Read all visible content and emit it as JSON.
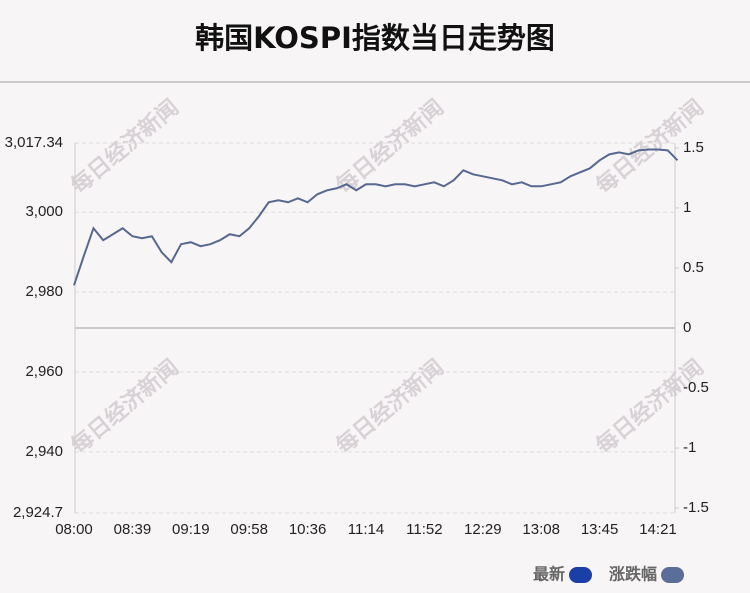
{
  "chart_data": {
    "type": "line",
    "title": "韩国KOSPI指数当日走势图",
    "watermark": "每日经济新闻",
    "categories": [
      "08:00",
      null,
      null,
      null,
      null,
      null,
      "08:39",
      null,
      null,
      null,
      null,
      null,
      "09:19",
      null,
      null,
      null,
      null,
      null,
      "09:58",
      null,
      null,
      null,
      null,
      null,
      "10:36",
      null,
      null,
      null,
      null,
      null,
      "11:14",
      null,
      null,
      null,
      null,
      null,
      "11:52",
      null,
      null,
      null,
      null,
      null,
      "12:29",
      null,
      null,
      null,
      null,
      null,
      "13:08",
      null,
      null,
      null,
      null,
      null,
      "13:45",
      null,
      null,
      null,
      null,
      null,
      "14:21",
      null,
      null
    ],
    "series": [
      {
        "name": "最新",
        "color": "#1a3fa8",
        "line_color": "#56688f",
        "values": [
          2981.7,
          2989,
          2996,
          2993,
          2994.5,
          2996,
          2994,
          2993.5,
          2994,
          2990,
          2987.5,
          2992,
          2992.5,
          2991.5,
          2992,
          2993,
          2994.5,
          2994,
          2996,
          2999,
          3002.5,
          3003,
          3002.5,
          3003.5,
          3002.5,
          3004.5,
          3005.5,
          3006,
          3007,
          3005.5,
          3007,
          3007,
          3006.5,
          3007,
          3007,
          3006.5,
          3007,
          3007.5,
          3006.5,
          3008,
          3010.5,
          3009.5,
          3009,
          3008.5,
          3008,
          3007,
          3007.5,
          3006.5,
          3006.5,
          3007,
          3007.5,
          3009,
          3010,
          3011,
          3013,
          3014.5,
          3015,
          3014.5,
          3015.5,
          3015.7,
          3015.7,
          3015.5,
          3013
        ]
      },
      {
        "name": "涨跌幅",
        "color": "#5b6e9a",
        "axis": "y2"
      }
    ],
    "ylim": [
      2924.7,
      3017.34
    ],
    "yticks": [
      {
        "value": 2924.7,
        "label": "2,924.7"
      },
      {
        "value": 2940,
        "label": "2,940"
      },
      {
        "value": 2960,
        "label": "2,960"
      },
      {
        "value": 2980,
        "label": "2,980"
      },
      {
        "value": 3000,
        "label": "3,000"
      },
      {
        "value": 3017.34,
        "label": "3,017.34"
      }
    ],
    "y2lim": [
      -1.541,
      1.541
    ],
    "y2ticks": [
      -1.5,
      -1,
      -0.5,
      0,
      0.5,
      1,
      1.5
    ],
    "grid": true
  }
}
